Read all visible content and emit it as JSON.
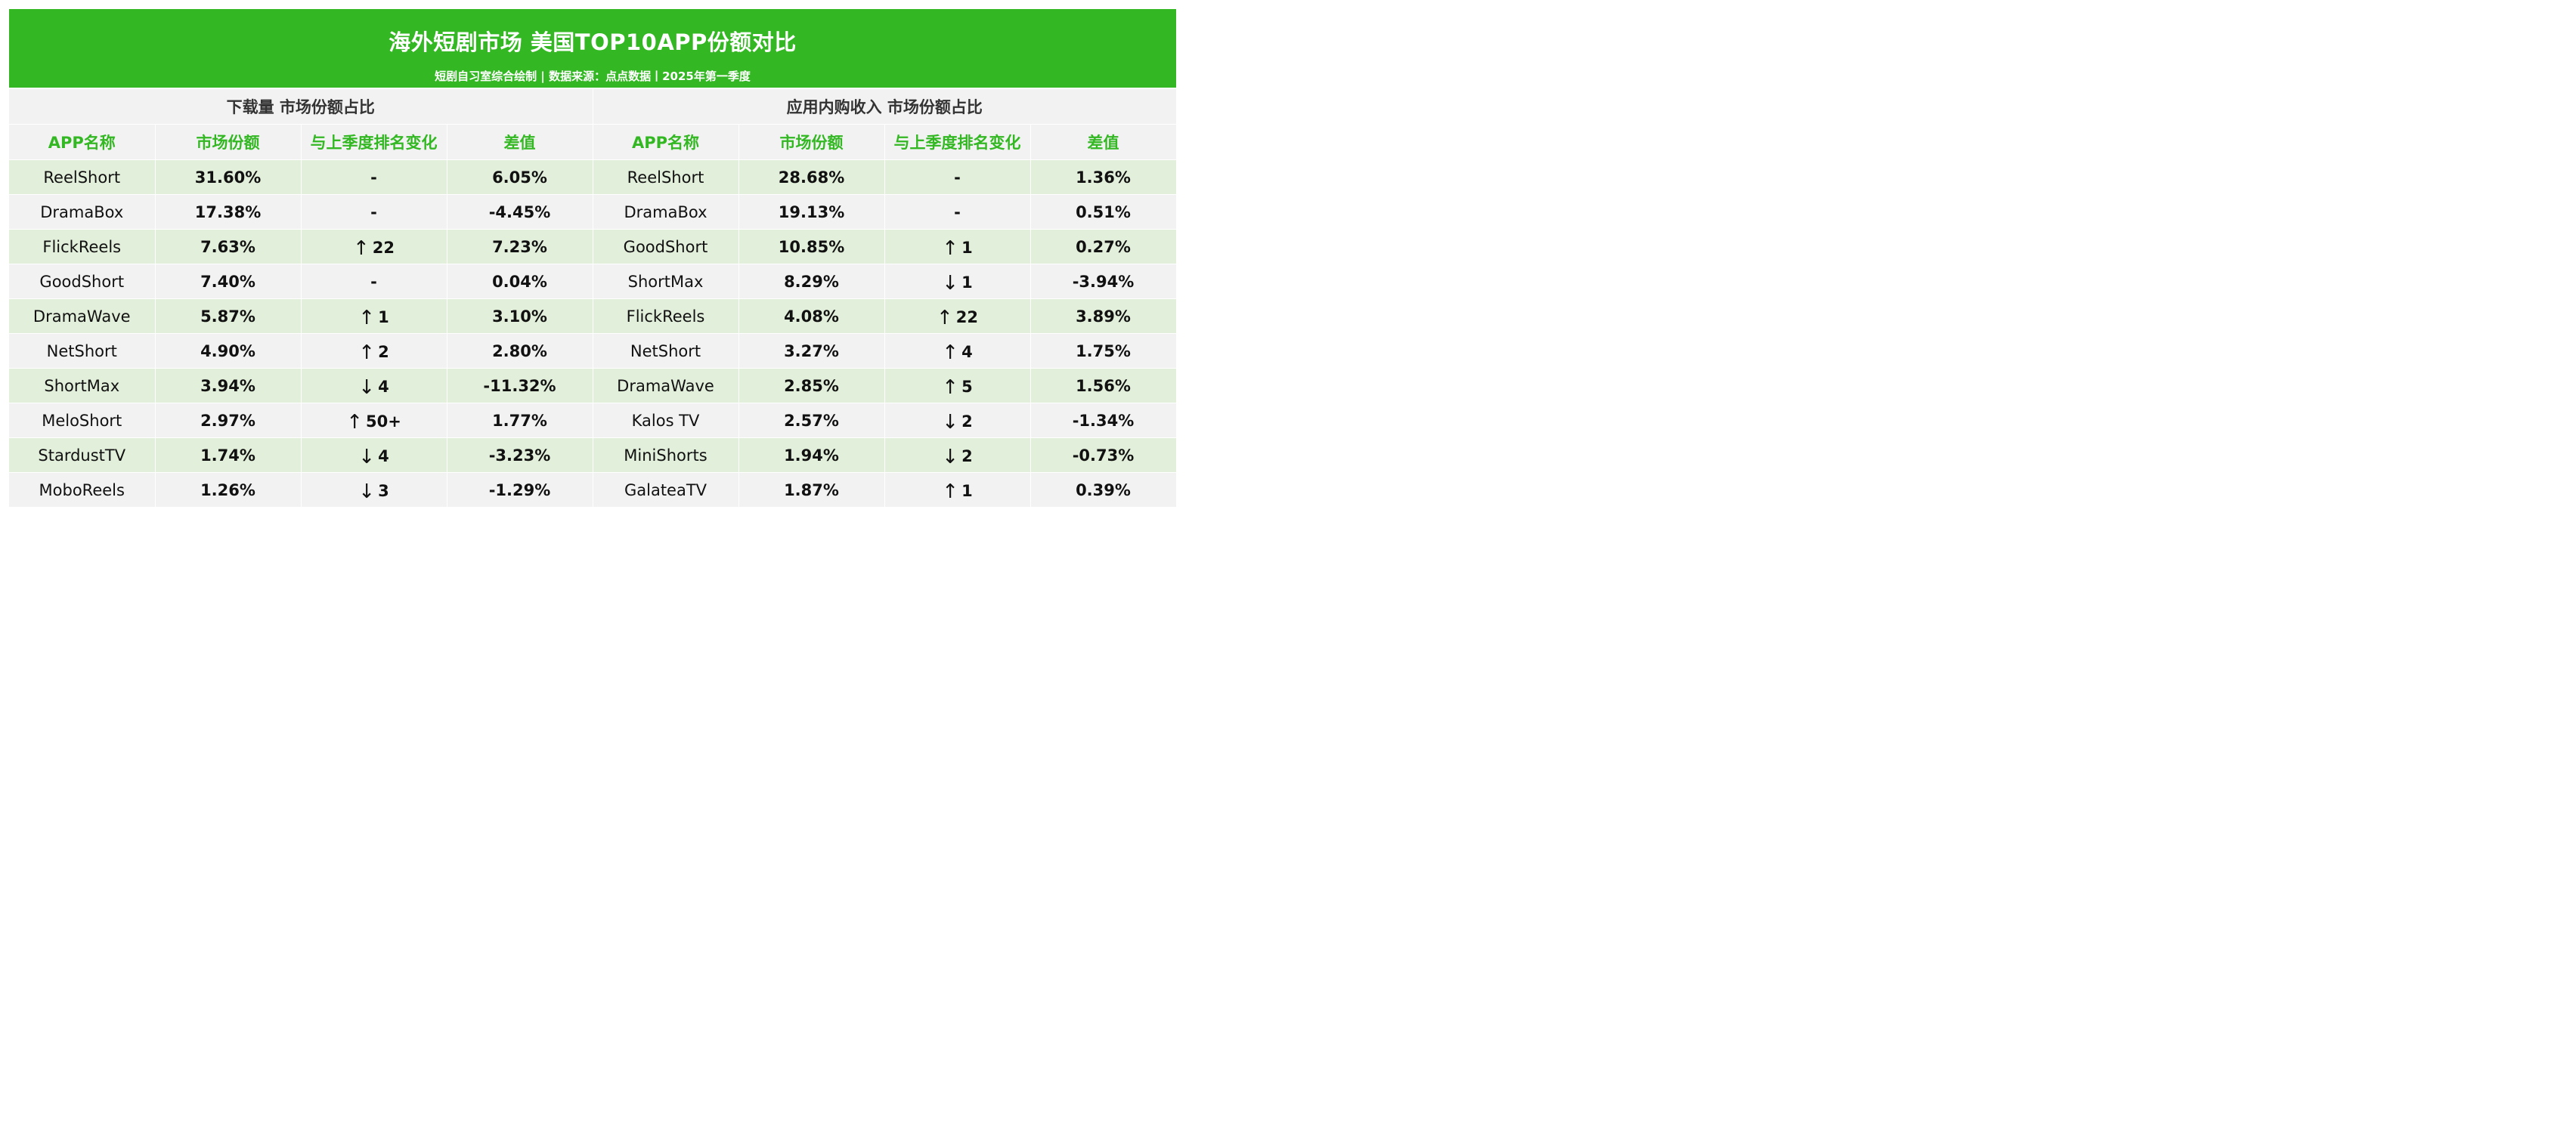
{
  "header": {
    "title": "海外短剧市场 美国TOP10APP份额对比",
    "subtitle": "短剧自习室综合绘制 | 数据来源：点点数据丨2025年第一季度"
  },
  "colors": {
    "banner": "#33b823",
    "header_text": "#33b823",
    "row_odd": "#e2efda",
    "row_even": "#f2f2f2",
    "up": "#e8403d",
    "down": "#30b523"
  },
  "columns": [
    "APP名称",
    "市场份额",
    "与上季度排名变化",
    "差值"
  ],
  "sections": [
    {
      "title": "下载量 市场份额占比",
      "rows": [
        {
          "name": "ReelShort",
          "share": "31.60%",
          "arrow": "",
          "change": "-",
          "dir": "none",
          "diff": "6.05%"
        },
        {
          "name": "DramaBox",
          "share": "17.38%",
          "arrow": "",
          "change": "-",
          "dir": "none",
          "diff": "-4.45%"
        },
        {
          "name": "FlickReels",
          "share": "7.63%",
          "arrow": "↑",
          "change": "22",
          "dir": "up",
          "diff": "7.23%"
        },
        {
          "name": "GoodShort",
          "share": "7.40%",
          "arrow": "",
          "change": "-",
          "dir": "none",
          "diff": "0.04%"
        },
        {
          "name": "DramaWave",
          "share": "5.87%",
          "arrow": "↑",
          "change": "1",
          "dir": "up",
          "diff": "3.10%"
        },
        {
          "name": "NetShort",
          "share": "4.90%",
          "arrow": "↑",
          "change": "2",
          "dir": "up",
          "diff": "2.80%"
        },
        {
          "name": "ShortMax",
          "share": "3.94%",
          "arrow": "↓",
          "change": "4",
          "dir": "down",
          "diff": "-11.32%"
        },
        {
          "name": "MeloShort",
          "share": "2.97%",
          "arrow": "↑",
          "change": "50+",
          "dir": "up",
          "diff": "1.77%"
        },
        {
          "name": "StardustTV",
          "share": "1.74%",
          "arrow": "↓",
          "change": "4",
          "dir": "down",
          "diff": "-3.23%"
        },
        {
          "name": "MoboReels",
          "share": "1.26%",
          "arrow": "↓",
          "change": "3",
          "dir": "down",
          "diff": "-1.29%"
        }
      ]
    },
    {
      "title": "应用内购收入 市场份额占比",
      "rows": [
        {
          "name": "ReelShort",
          "share": "28.68%",
          "arrow": "",
          "change": "-",
          "dir": "none",
          "diff": "1.36%"
        },
        {
          "name": "DramaBox",
          "share": "19.13%",
          "arrow": "",
          "change": "-",
          "dir": "none",
          "diff": "0.51%"
        },
        {
          "name": "GoodShort",
          "share": "10.85%",
          "arrow": "↑",
          "change": "1",
          "dir": "up",
          "diff": "0.27%"
        },
        {
          "name": "ShortMax",
          "share": "8.29%",
          "arrow": "↓",
          "change": "1",
          "dir": "down",
          "diff": "-3.94%"
        },
        {
          "name": "FlickReels",
          "share": "4.08%",
          "arrow": "↑",
          "change": "22",
          "dir": "up",
          "diff": "3.89%"
        },
        {
          "name": "NetShort",
          "share": "3.27%",
          "arrow": "↑",
          "change": "4",
          "dir": "up",
          "diff": "1.75%"
        },
        {
          "name": "DramaWave",
          "share": "2.85%",
          "arrow": "↑",
          "change": "5",
          "dir": "up",
          "diff": "1.56%"
        },
        {
          "name": "Kalos TV",
          "share": "2.57%",
          "arrow": "↓",
          "change": "2",
          "dir": "down",
          "diff": "-1.34%"
        },
        {
          "name": "MiniShorts",
          "share": "1.94%",
          "arrow": "↓",
          "change": "2",
          "dir": "down",
          "diff": "-0.73%"
        },
        {
          "name": "GalateaTV",
          "share": "1.87%",
          "arrow": "↑",
          "change": "1",
          "dir": "up",
          "diff": "0.39%"
        }
      ]
    }
  ]
}
